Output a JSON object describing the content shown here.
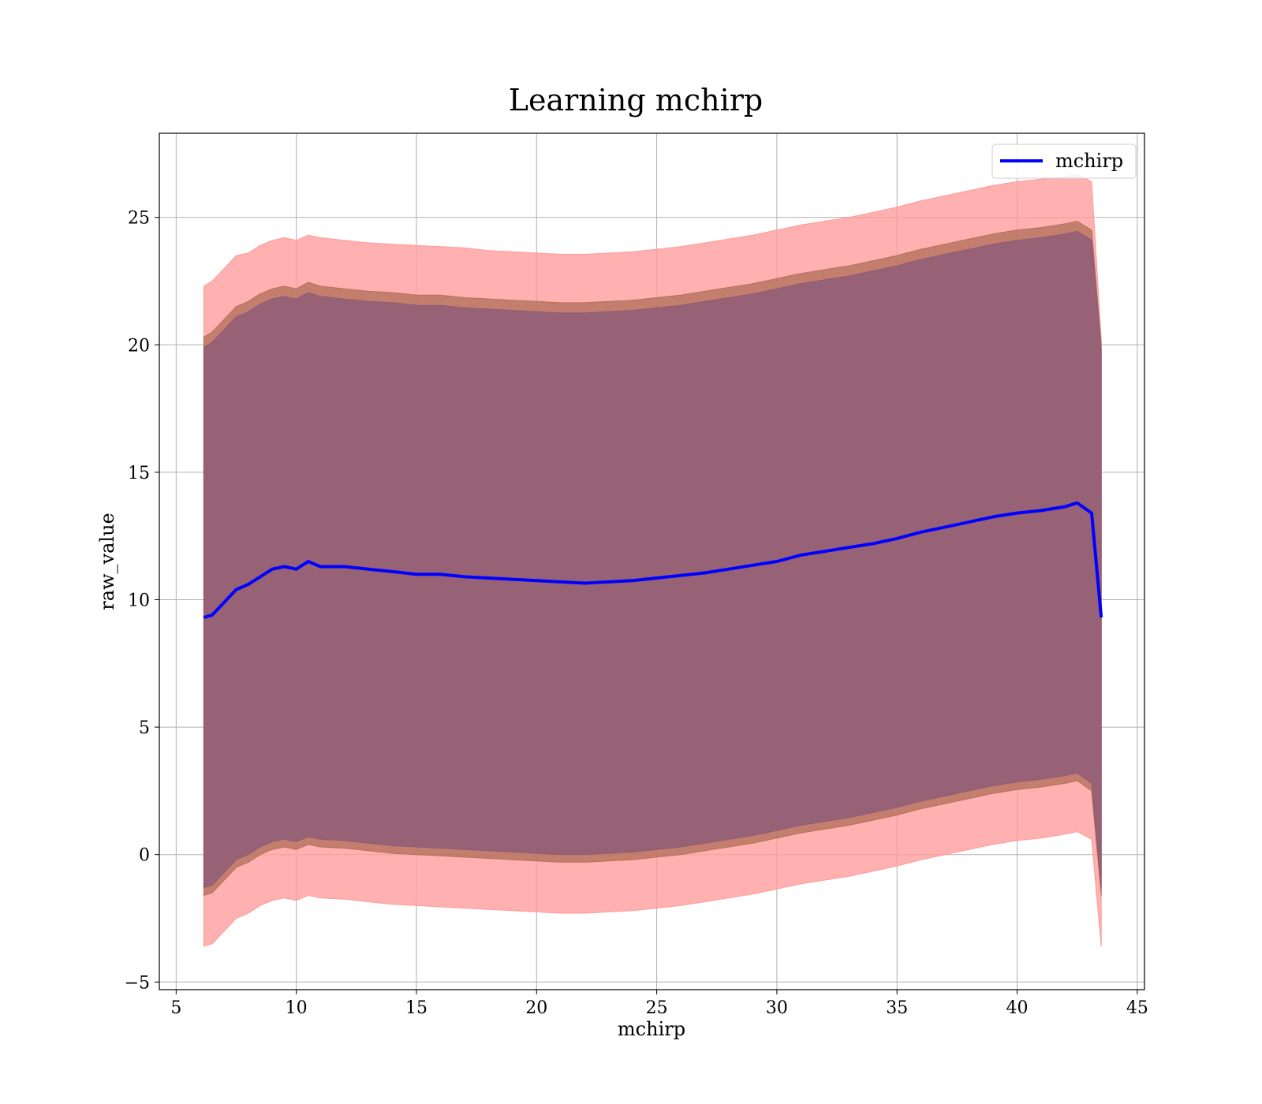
{
  "chart_data": {
    "type": "area",
    "title": "Learning mchirp",
    "xlabel": "mchirp",
    "ylabel": "raw_value",
    "xlim": [
      4.3,
      45.3
    ],
    "ylim": [
      -5.3,
      28.3
    ],
    "grid": true,
    "legend_position": "top-right",
    "x_ticks": [
      5,
      10,
      15,
      20,
      25,
      30,
      35,
      40,
      45
    ],
    "y_ticks": [
      -5,
      0,
      5,
      10,
      15,
      20,
      25
    ],
    "x_tick_labels": [
      "5",
      "10",
      "15",
      "20",
      "25",
      "30",
      "35",
      "40",
      "45"
    ],
    "y_tick_labels": [
      "−5",
      "0",
      "5",
      "10",
      "15",
      "20",
      "25"
    ],
    "x": [
      6.15,
      6.5,
      7,
      7.5,
      8,
      8.5,
      9,
      9.5,
      10,
      10.5,
      11,
      12,
      13,
      14,
      15,
      16,
      17,
      18,
      19,
      20,
      21,
      22,
      23,
      24,
      25,
      26,
      27,
      28,
      29,
      30,
      31,
      32,
      33,
      34,
      35,
      36,
      37,
      38,
      39,
      40,
      41,
      42,
      42.5,
      43.1,
      43.5
    ],
    "series": [
      {
        "name": "mchirp",
        "color": "#0000ff",
        "values": [
          9.3,
          9.4,
          9.9,
          10.4,
          10.6,
          10.9,
          11.2,
          11.3,
          11.2,
          11.5,
          11.3,
          11.3,
          11.2,
          11.1,
          11.0,
          11.0,
          10.9,
          10.85,
          10.8,
          10.75,
          10.7,
          10.65,
          10.7,
          10.75,
          10.85,
          10.95,
          11.05,
          11.2,
          11.35,
          11.5,
          11.75,
          11.9,
          12.05,
          12.2,
          12.4,
          12.65,
          12.85,
          13.05,
          13.25,
          13.4,
          13.5,
          13.65,
          13.8,
          13.4,
          9.3
        ]
      }
    ],
    "bands": [
      {
        "color": "#ff9a9a",
        "upper": [
          22.3,
          22.5,
          23.0,
          23.5,
          23.6,
          23.9,
          24.1,
          24.2,
          24.1,
          24.3,
          24.2,
          24.1,
          24.0,
          23.95,
          23.9,
          23.85,
          23.8,
          23.7,
          23.65,
          23.6,
          23.55,
          23.55,
          23.6,
          23.65,
          23.75,
          23.85,
          24.0,
          24.15,
          24.3,
          24.5,
          24.7,
          24.85,
          25.0,
          25.2,
          25.4,
          25.65,
          25.85,
          26.05,
          26.25,
          26.4,
          26.5,
          26.6,
          26.7,
          26.4,
          20.2
        ],
        "lower": [
          -3.6,
          -3.5,
          -3.0,
          -2.5,
          -2.3,
          -2.0,
          -1.8,
          -1.7,
          -1.8,
          -1.6,
          -1.7,
          -1.75,
          -1.85,
          -1.95,
          -2.0,
          -2.05,
          -2.1,
          -2.15,
          -2.2,
          -2.25,
          -2.3,
          -2.3,
          -2.25,
          -2.2,
          -2.1,
          -2.0,
          -1.85,
          -1.7,
          -1.55,
          -1.35,
          -1.15,
          -1.0,
          -0.85,
          -0.65,
          -0.45,
          -0.2,
          0.0,
          0.2,
          0.4,
          0.55,
          0.65,
          0.8,
          0.9,
          0.6,
          -3.6
        ]
      },
      {
        "color": "#b4705a",
        "upper": [
          20.3,
          20.5,
          21.0,
          21.5,
          21.7,
          22.0,
          22.2,
          22.3,
          22.2,
          22.45,
          22.3,
          22.2,
          22.1,
          22.05,
          21.95,
          21.95,
          21.85,
          21.8,
          21.75,
          21.7,
          21.65,
          21.65,
          21.7,
          21.75,
          21.85,
          21.95,
          22.1,
          22.25,
          22.4,
          22.6,
          22.8,
          22.95,
          23.1,
          23.3,
          23.5,
          23.75,
          23.95,
          24.15,
          24.35,
          24.5,
          24.6,
          24.75,
          24.85,
          24.5,
          20.0
        ],
        "lower": [
          -1.6,
          -1.5,
          -1.0,
          -0.5,
          -0.3,
          0.0,
          0.2,
          0.3,
          0.2,
          0.4,
          0.3,
          0.25,
          0.15,
          0.05,
          0.0,
          -0.05,
          -0.1,
          -0.15,
          -0.2,
          -0.25,
          -0.3,
          -0.3,
          -0.25,
          -0.2,
          -0.1,
          0.0,
          0.15,
          0.3,
          0.45,
          0.65,
          0.85,
          1.0,
          1.15,
          1.35,
          1.55,
          1.8,
          2.0,
          2.2,
          2.4,
          2.55,
          2.65,
          2.8,
          2.9,
          2.5,
          -1.6
        ]
      },
      {
        "color": "#8c5a78",
        "upper": [
          19.9,
          20.1,
          20.6,
          21.1,
          21.3,
          21.6,
          21.8,
          21.9,
          21.8,
          22.05,
          21.9,
          21.8,
          21.7,
          21.65,
          21.55,
          21.55,
          21.45,
          21.4,
          21.35,
          21.3,
          21.25,
          21.25,
          21.3,
          21.35,
          21.45,
          21.55,
          21.7,
          21.85,
          22.0,
          22.2,
          22.4,
          22.55,
          22.7,
          22.9,
          23.1,
          23.35,
          23.55,
          23.75,
          23.95,
          24.1,
          24.2,
          24.35,
          24.45,
          24.1,
          19.8
        ],
        "lower": [
          -1.3,
          -1.2,
          -0.7,
          -0.2,
          0.0,
          0.3,
          0.5,
          0.6,
          0.5,
          0.7,
          0.6,
          0.55,
          0.45,
          0.35,
          0.3,
          0.25,
          0.2,
          0.15,
          0.1,
          0.05,
          0.0,
          0.0,
          0.05,
          0.1,
          0.2,
          0.3,
          0.45,
          0.6,
          0.75,
          0.95,
          1.15,
          1.3,
          1.45,
          1.65,
          1.85,
          2.1,
          2.3,
          2.5,
          2.7,
          2.85,
          2.95,
          3.1,
          3.2,
          2.8,
          -1.3
        ]
      }
    ]
  }
}
